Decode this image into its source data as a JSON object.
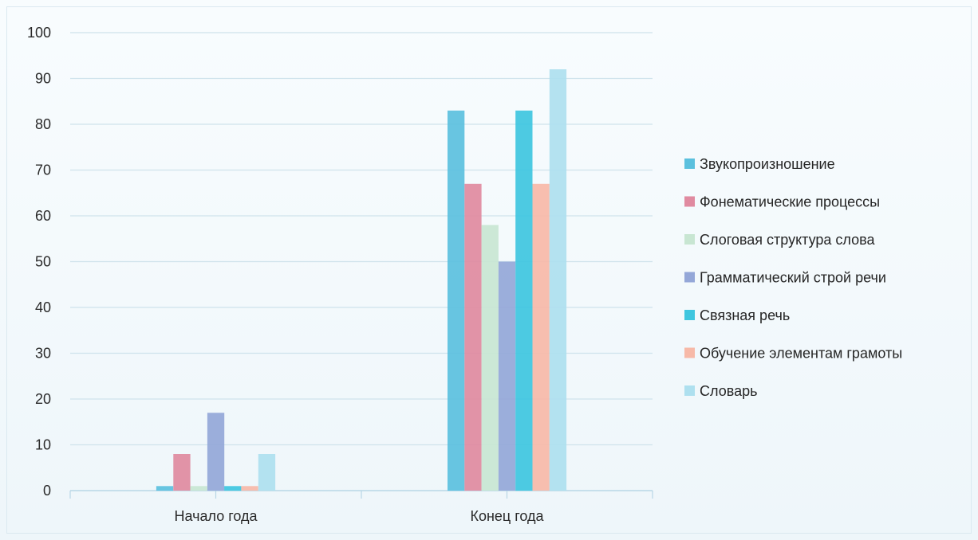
{
  "chart_data": {
    "type": "bar",
    "title": "",
    "xlabel": "",
    "ylabel": "",
    "categories": [
      "Начало года",
      "Конец года"
    ],
    "ylim": [
      0,
      100
    ],
    "yticks": [
      0,
      10,
      20,
      30,
      40,
      50,
      60,
      70,
      80,
      90,
      100
    ],
    "grid": true,
    "legend_position": "right",
    "series": [
      {
        "name": "Звукопроизношение",
        "values": [
          1,
          83
        ],
        "color": "#5bc0de"
      },
      {
        "name": "Фонематические процессы",
        "values": [
          8,
          67
        ],
        "color": "#e08aa0"
      },
      {
        "name": "Слоговая структура слова",
        "values": [
          1,
          58
        ],
        "color": "#c8e6d2"
      },
      {
        "name": "Грамматический строй речи",
        "values": [
          17,
          50
        ],
        "color": "#94a7d8"
      },
      {
        "name": "Связная речь",
        "values": [
          1,
          83
        ],
        "color": "#3ec6df"
      },
      {
        "name": "Обучение элементам грамоты",
        "values": [
          1,
          67
        ],
        "color": "#f7b9a8"
      },
      {
        "name": "Словарь",
        "values": [
          8,
          92
        ],
        "color": "#aee0ef"
      }
    ]
  }
}
